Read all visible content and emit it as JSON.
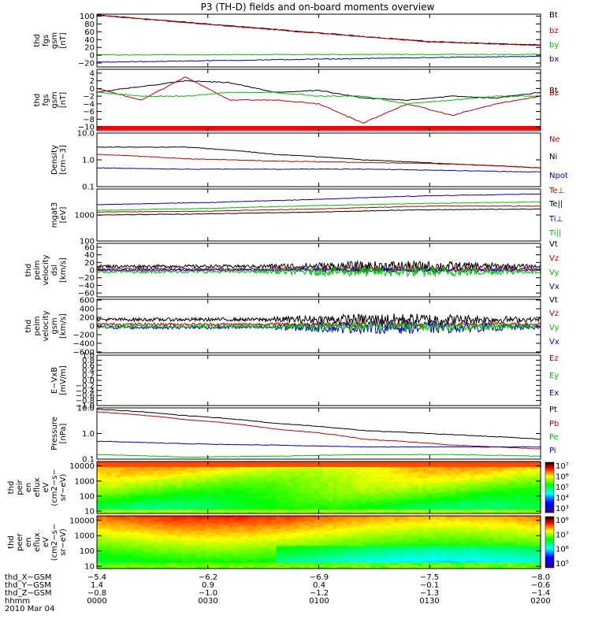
{
  "title": "P3 (TH-D) fields and on-board moments overview",
  "chart_data": [
    {
      "type": "line",
      "ylabel": [
        "thd",
        "fgs",
        "gsm",
        "[nT]"
      ],
      "yscale": "linear",
      "ylim": [
        -30,
        105
      ],
      "yticks": [
        "100",
        "80",
        "60",
        "40",
        "20",
        "0",
        "−20"
      ],
      "ytickvals": [
        100,
        80,
        60,
        40,
        20,
        0,
        -20
      ],
      "legend": [
        {
          "label": "Bt",
          "color": "#000000"
        },
        {
          "label": "bz",
          "color": "#c00000"
        },
        {
          "label": "by",
          "color": "#00c000"
        },
        {
          "label": "bx",
          "color": "#0000c0"
        }
      ],
      "series": [
        {
          "name": "Bt",
          "color": "#000000",
          "x": [
            0,
            0.25,
            0.5,
            0.75,
            1
          ],
          "y": [
            103,
            80,
            57,
            35,
            26
          ]
        },
        {
          "name": "bz",
          "color": "#c00000",
          "x": [
            0,
            0.25,
            0.5,
            0.75,
            1
          ],
          "y": [
            102,
            79,
            56,
            34,
            25
          ]
        },
        {
          "name": "by",
          "color": "#00c000",
          "x": [
            0,
            0.25,
            0.5,
            0.75,
            1
          ],
          "y": [
            1,
            1,
            2,
            2,
            2
          ]
        },
        {
          "name": "bx",
          "color": "#0000c0",
          "x": [
            0,
            0.25,
            0.5,
            0.75,
            1
          ],
          "y": [
            -18,
            -14,
            -10,
            -6,
            -3
          ]
        }
      ]
    },
    {
      "type": "line",
      "ylabel": [
        "thd",
        "fgs",
        "gsm",
        "[nT]"
      ],
      "yscale": "linear",
      "ylim": [
        -11,
        5
      ],
      "yticks": [
        "4",
        "2",
        "0",
        "−2",
        "−4",
        "−6",
        "−8",
        "−10"
      ],
      "ytickvals": [
        4,
        2,
        0,
        -2,
        -4,
        -6,
        -8,
        -10
      ],
      "legend": [
        {
          "label": "Bt",
          "color": "#000000"
        },
        {
          "label": "Bz",
          "color": "#c00000"
        },
        {
          "label": "By",
          "color": "#00c000"
        }
      ],
      "series": [
        {
          "name": "Bt",
          "color": "#000000",
          "x": [
            0,
            0.1,
            0.2,
            0.3,
            0.4,
            0.5,
            0.6,
            0.7,
            0.8,
            0.9,
            1
          ],
          "y": [
            -1,
            0.5,
            2,
            1.5,
            -1,
            -0.5,
            -2.5,
            -3,
            -2,
            -2.5,
            -1
          ]
        },
        {
          "name": "Bz",
          "color": "#c00000",
          "x": [
            0,
            0.1,
            0.2,
            0.3,
            0.4,
            0.5,
            0.6,
            0.7,
            0.8,
            0.9,
            1
          ],
          "y": [
            0,
            -3,
            3,
            -3,
            -3,
            -4,
            -9,
            -4,
            -7,
            -4,
            -2
          ]
        },
        {
          "name": "By",
          "color": "#00c000",
          "x": [
            0,
            0.1,
            0.2,
            0.3,
            0.4,
            0.5,
            0.6,
            0.7,
            0.8,
            0.9,
            1
          ],
          "y": [
            -1,
            -2,
            -2,
            -1,
            -1,
            -2,
            -2,
            -4,
            -3,
            -2,
            -2
          ]
        }
      ],
      "indicator_bar_color": "#ff0000"
    },
    {
      "type": "line",
      "ylabel": [
        "Density",
        "[cm−3]"
      ],
      "yscale": "log",
      "ylim": [
        0.1,
        10
      ],
      "yticks": [
        "10.0",
        "1.0",
        "0.1"
      ],
      "ytickvals": [
        10,
        1,
        0.1
      ],
      "legend": [
        {
          "label": "Ne",
          "color": "#c00000"
        },
        {
          "label": "Ni",
          "color": "#000000"
        },
        {
          "label": "Npot",
          "color": "#0000c0"
        }
      ],
      "series": [
        {
          "name": "Ni",
          "color": "#000000",
          "x": [
            0,
            0.2,
            0.4,
            0.6,
            0.8,
            1
          ],
          "y": [
            3,
            3,
            1.6,
            1,
            0.7,
            0.5
          ]
        },
        {
          "name": "Ne",
          "color": "#c00000",
          "x": [
            0,
            0.2,
            0.4,
            0.6,
            0.8,
            1
          ],
          "y": [
            1.6,
            1.1,
            0.9,
            0.8,
            0.7,
            0.5
          ]
        },
        {
          "name": "Npot",
          "color": "#0000c0",
          "x": [
            0,
            0.2,
            0.4,
            0.6,
            0.8,
            1
          ],
          "y": [
            0.5,
            0.45,
            0.45,
            0.45,
            0.4,
            0.35
          ]
        }
      ]
    },
    {
      "type": "line",
      "ylabel": [
        "mgat3",
        "[eV]"
      ],
      "yscale": "log",
      "ylim": [
        100,
        10000
      ],
      "yticks": [
        "1000",
        "100"
      ],
      "ytickvals": [
        1000,
        100
      ],
      "legend": [
        {
          "label": "Te⊥",
          "color": "#c00000"
        },
        {
          "label": "Te||",
          "color": "#000000"
        },
        {
          "label": "Ti⊥",
          "color": "#0000c0"
        },
        {
          "label": "Ti||",
          "color": "#00c000"
        }
      ],
      "series": [
        {
          "name": "Ti⊥",
          "color": "#0000c0",
          "x": [
            0,
            0.25,
            0.5,
            0.75,
            1
          ],
          "y": [
            2500,
            3000,
            4000,
            5500,
            6500
          ]
        },
        {
          "name": "Ti||",
          "color": "#00c000",
          "x": [
            0,
            0.25,
            0.5,
            0.75,
            1
          ],
          "y": [
            1500,
            1800,
            2300,
            2800,
            3200
          ]
        },
        {
          "name": "Te⊥",
          "color": "#c00000",
          "x": [
            0,
            0.25,
            0.5,
            0.75,
            1
          ],
          "y": [
            1300,
            1400,
            1700,
            2200,
            2200
          ]
        },
        {
          "name": "Te||",
          "color": "#000000",
          "x": [
            0,
            0.25,
            0.5,
            0.75,
            1
          ],
          "y": [
            1000,
            1100,
            1300,
            1600,
            1700
          ]
        }
      ]
    },
    {
      "type": "line",
      "ylabel": [
        "thd",
        "peim",
        "velocity",
        "dsl",
        "[km/s]"
      ],
      "yscale": "linear",
      "ylim": [
        -70,
        70
      ],
      "yticks": [
        "60",
        "40",
        "20",
        "0",
        "−20",
        "−40",
        "−60"
      ],
      "ytickvals": [
        60,
        40,
        20,
        0,
        -20,
        -40,
        -60
      ],
      "legend": [
        {
          "label": "Vt",
          "color": "#000000"
        },
        {
          "label": "Vz",
          "color": "#c00000"
        },
        {
          "label": "Vy",
          "color": "#00c000"
        },
        {
          "label": "Vx",
          "color": "#0000c0"
        }
      ],
      "series": [
        {
          "name": "Vt",
          "color": "#000000",
          "center": 10,
          "noise": [
            4,
            14
          ]
        },
        {
          "name": "Vz",
          "color": "#c00000",
          "center": 3,
          "noise": [
            3,
            6
          ]
        },
        {
          "name": "Vx",
          "color": "#0000c0",
          "center": 0,
          "noise": [
            3,
            6
          ]
        },
        {
          "name": "Vy",
          "color": "#00c000",
          "center": -4,
          "noise": [
            4,
            14
          ]
        }
      ]
    },
    {
      "type": "line",
      "ylabel": [
        "thd",
        "peim",
        "velocity",
        "gsm",
        "[km/s]"
      ],
      "yscale": "linear",
      "ylim": [
        -620,
        620
      ],
      "yticks": [
        "600",
        "400",
        "200",
        "0",
        "−200",
        "−400",
        "−600"
      ],
      "ytickvals": [
        600,
        400,
        200,
        0,
        -200,
        -400,
        -600
      ],
      "legend": [
        {
          "label": "Vt",
          "color": "#000000"
        },
        {
          "label": "Vz",
          "color": "#c00000"
        },
        {
          "label": "Vy",
          "color": "#00c000"
        },
        {
          "label": "Vx",
          "color": "#0000c0"
        }
      ],
      "series": [
        {
          "name": "Vt",
          "color": "#000000",
          "center": 150,
          "noise": [
            40,
            140
          ]
        },
        {
          "name": "Vz",
          "color": "#c00000",
          "center": 40,
          "noise": [
            30,
            60
          ]
        },
        {
          "name": "Vx",
          "color": "#0000c0",
          "center": -30,
          "noise": [
            40,
            150
          ]
        },
        {
          "name": "Vy",
          "color": "#00c000",
          "center": -10,
          "noise": [
            40,
            100
          ]
        }
      ]
    },
    {
      "type": "line",
      "ylabel": [
        "E−VxB",
        "[mV/m]"
      ],
      "yscale": "linear",
      "ylim": [
        -1,
        1
      ],
      "yticks": [
        "1.0",
        "0.8",
        "0.6",
        "0.4",
        "0.2",
        "0.0",
        "−0.2",
        "−0.4",
        "−0.6",
        "−0.8",
        "−1.0"
      ],
      "ytickvals": [
        1,
        0.8,
        0.6,
        0.4,
        0.2,
        0,
        -0.2,
        -0.4,
        -0.6,
        -0.8,
        -1
      ],
      "legend": [
        {
          "label": "Ez",
          "color": "#c00000"
        },
        {
          "label": "Ey",
          "color": "#00c000"
        },
        {
          "label": "Ex",
          "color": "#0000c0"
        }
      ],
      "series": []
    },
    {
      "type": "line",
      "ylabel": [
        "Pressure",
        "[nPa]"
      ],
      "yscale": "log",
      "ylim": [
        0.1,
        10
      ],
      "yticks": [
        "10.0",
        "1.0",
        "0.1"
      ],
      "ytickvals": [
        10,
        1,
        0.1
      ],
      "legend": [
        {
          "label": "Pt",
          "color": "#000000"
        },
        {
          "label": "Pb",
          "color": "#c00000"
        },
        {
          "label": "Pe",
          "color": "#00c000"
        },
        {
          "label": "Pi",
          "color": "#0000c0"
        }
      ],
      "series": [
        {
          "name": "Pt",
          "color": "#000000",
          "x": [
            0,
            0.2,
            0.4,
            0.6,
            0.8,
            1
          ],
          "y": [
            9,
            5,
            2.5,
            1.3,
            0.9,
            0.6
          ]
        },
        {
          "name": "Pb",
          "color": "#c00000",
          "x": [
            0,
            0.2,
            0.4,
            0.6,
            0.8,
            1
          ],
          "y": [
            7,
            3.5,
            1.5,
            0.6,
            0.35,
            0.25
          ]
        },
        {
          "name": "Pi",
          "color": "#0000c0",
          "x": [
            0,
            0.2,
            0.4,
            0.6,
            0.8,
            1
          ],
          "y": [
            0.5,
            0.4,
            0.35,
            0.3,
            0.3,
            0.3
          ]
        },
        {
          "name": "Pe",
          "color": "#00c000",
          "x": [
            0,
            0.2,
            0.4,
            0.6,
            0.8,
            1
          ],
          "y": [
            0.15,
            0.12,
            0.13,
            0.15,
            0.15,
            0.13
          ]
        }
      ]
    },
    {
      "type": "heatmap",
      "ylabel": [
        "thd",
        "peir",
        "en",
        "eflux",
        "eV",
        "(cm2−s−",
        "sr−eV)"
      ],
      "yscale": "log",
      "ylim": [
        7,
        20000
      ],
      "yticks": [
        "10000",
        "1000",
        "100",
        "10"
      ],
      "ytickvals": [
        10000,
        1000,
        100,
        10
      ],
      "colorbar": {
        "ticks": [
          "10⁷",
          "10⁶",
          "10⁵",
          "10⁴",
          "10³"
        ]
      }
    },
    {
      "type": "heatmap",
      "ylabel": [
        "thd",
        "peer",
        "en",
        "eflux",
        "eV",
        "(cm2−s−",
        "sr−eV)"
      ],
      "yscale": "log",
      "ylim": [
        7,
        20000
      ],
      "yticks": [
        "10000",
        "1000",
        "100",
        "10"
      ],
      "ytickvals": [
        10000,
        1000,
        100,
        10
      ],
      "colorbar": {
        "ticks": [
          "10⁸",
          "10⁷",
          "10⁶",
          "10⁵"
        ]
      }
    }
  ],
  "ephemeris": {
    "rows": [
      {
        "label": "thd_X−GSM",
        "values": [
          "−5.4",
          "−6.2",
          "−6.9",
          "−7.5",
          "−8.0"
        ]
      },
      {
        "label": "thd_Y−GSM",
        "values": [
          "1.4",
          "0.9",
          "0.4",
          "−0.1",
          "−0.6"
        ]
      },
      {
        "label": "thd_Z−GSM",
        "values": [
          "−0.8",
          "−1.0",
          "−1.2",
          "−1.3",
          "−1.4"
        ]
      },
      {
        "label": "hhmm",
        "values": [
          "0000",
          "0030",
          "0100",
          "0130",
          "0200"
        ]
      }
    ],
    "date": "2010 Mar 04"
  }
}
